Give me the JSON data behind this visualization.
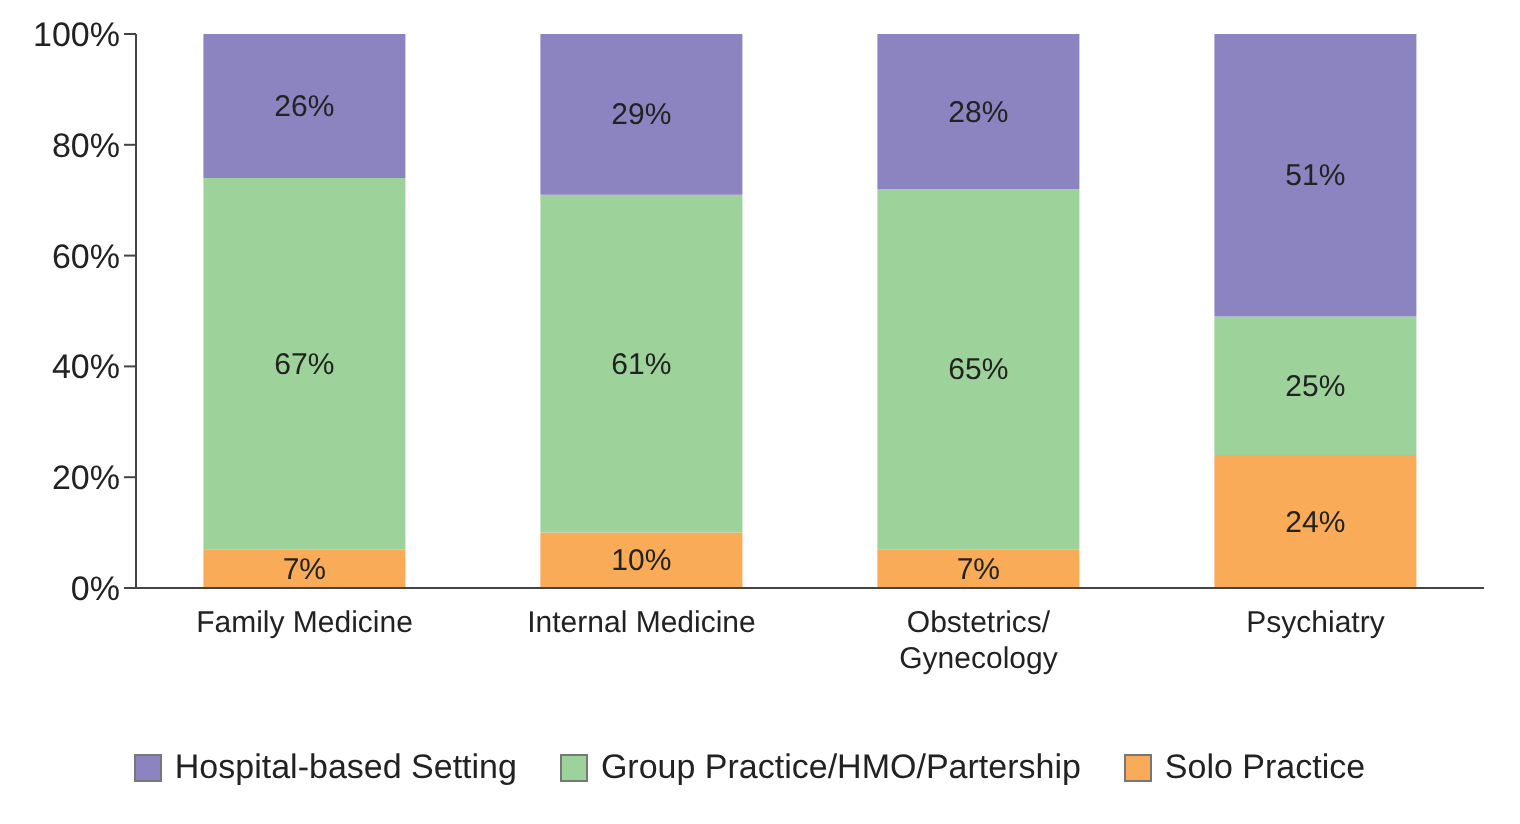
{
  "chart_data": {
    "type": "bar",
    "stacked": true,
    "categories": [
      "Family Medicine",
      "Internal Medicine",
      "Obstetrics/ Gynecology",
      "Psychiatry"
    ],
    "series": [
      {
        "name": "Solo Practice",
        "color": "#f9ab57",
        "values": [
          7,
          10,
          7,
          24
        ],
        "value_labels": [
          "7%",
          "10%",
          "7%",
          "24%"
        ]
      },
      {
        "name": "Group Practice/HMO/Partership",
        "color": "#9dd39a",
        "values": [
          67,
          61,
          65,
          25
        ],
        "value_labels": [
          "67%",
          "61%",
          "65%",
          "25%"
        ]
      },
      {
        "name": "Hospital-based Setting",
        "color": "#8b84c0",
        "values": [
          26,
          29,
          28,
          51
        ],
        "value_labels": [
          "26%",
          "29%",
          "28%",
          "51%"
        ]
      }
    ],
    "ylim": [
      0,
      100
    ],
    "yticks": [
      {
        "value": 0,
        "label": "0%"
      },
      {
        "value": 20,
        "label": "20%"
      },
      {
        "value": 40,
        "label": "40%"
      },
      {
        "value": 60,
        "label": "60%"
      },
      {
        "value": 80,
        "label": "80%"
      },
      {
        "value": 100,
        "label": "100%"
      }
    ],
    "grid": false,
    "legend": "bottom"
  }
}
